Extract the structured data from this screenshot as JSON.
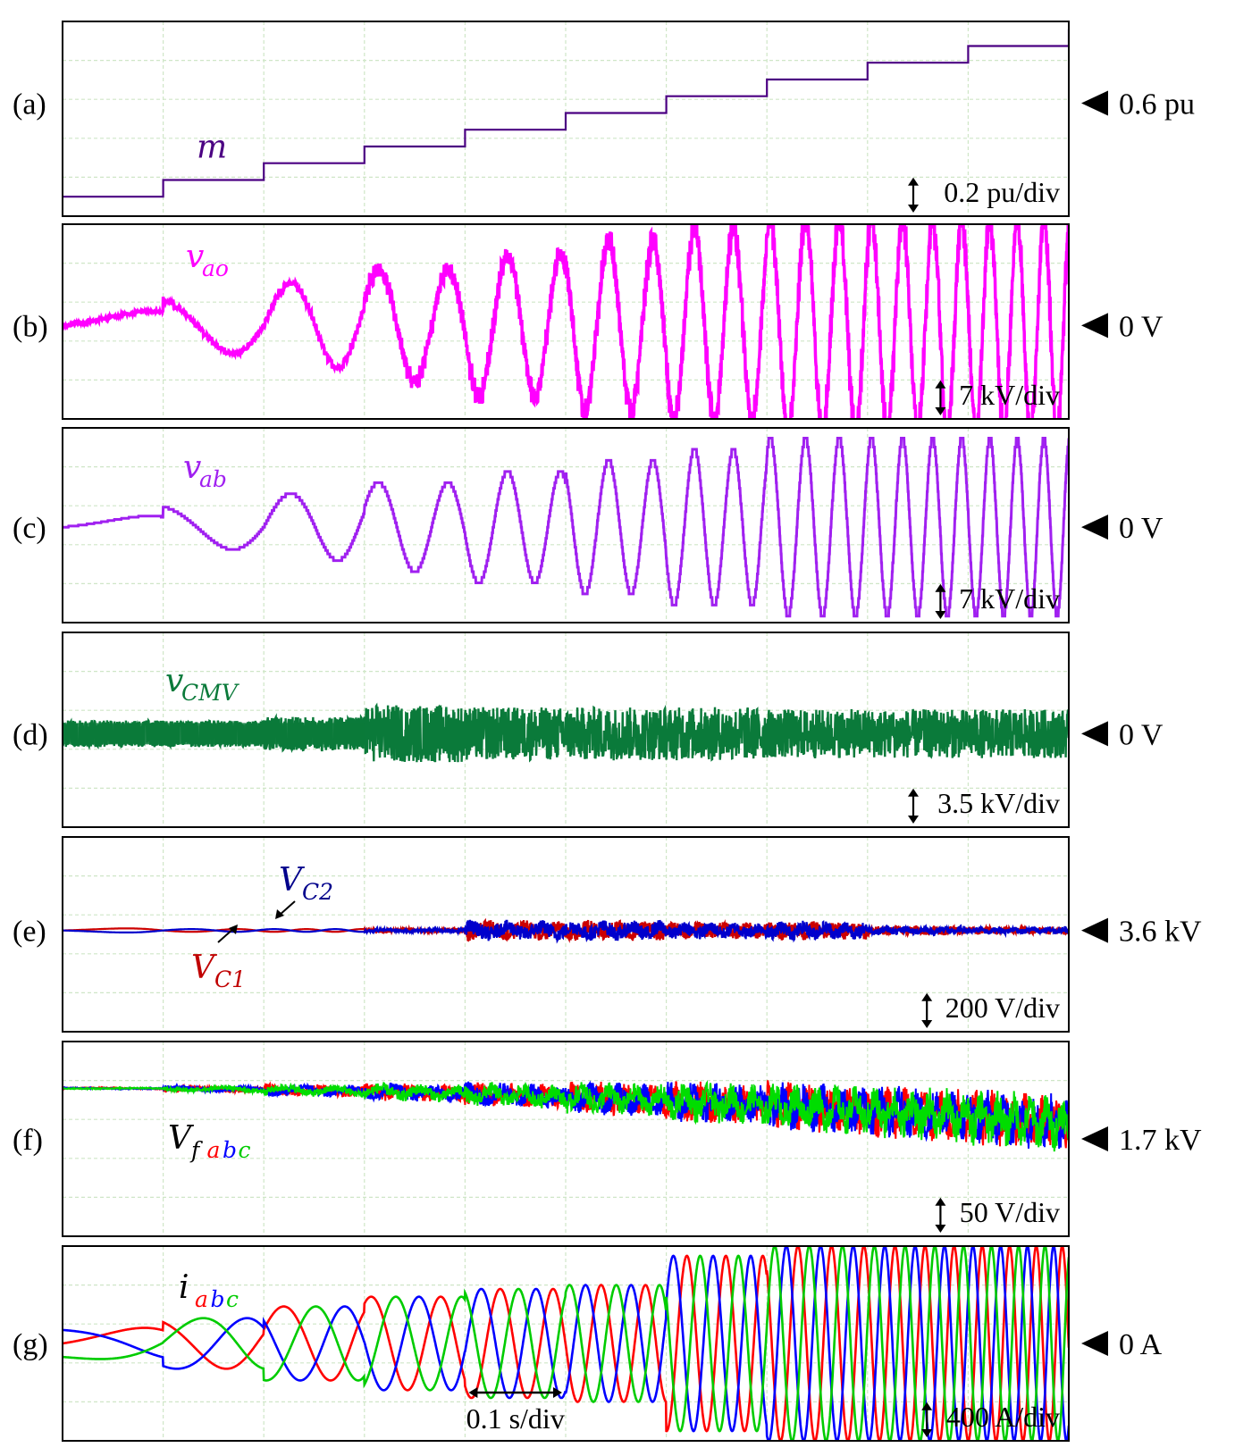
{
  "chart_data": [
    {
      "id": "a",
      "type": "line",
      "panel_label": "(a)",
      "reference": "0.6 pu",
      "scale": "0.2 pu/div",
      "signal": {
        "main": "m",
        "sub": []
      },
      "color": "#4b0082",
      "steps": [
        {
          "t": 0.0,
          "v": 0.0
        },
        {
          "t": 0.1,
          "v": 0.1
        },
        {
          "t": 0.2,
          "v": 0.2
        },
        {
          "t": 0.3,
          "v": 0.3
        },
        {
          "t": 0.4,
          "v": 0.4
        },
        {
          "t": 0.5,
          "v": 0.5
        },
        {
          "t": 0.6,
          "v": 0.6
        },
        {
          "t": 0.7,
          "v": 0.7
        },
        {
          "t": 0.8,
          "v": 0.8
        },
        {
          "t": 0.9,
          "v": 0.9
        },
        {
          "t": 1.0,
          "v": 1.0
        }
      ]
    },
    {
      "id": "b",
      "type": "line",
      "panel_label": "(b)",
      "reference": "0 V",
      "scale": "7 kV/div",
      "signal": {
        "main": "v",
        "sub": [
          {
            "text": "ao",
            "color": "#ff00ff"
          }
        ]
      },
      "color": "#ff00ff",
      "envelope_kV": [
        2.5,
        5,
        7.5,
        10,
        12.5,
        15,
        17.5,
        19,
        19,
        19
      ],
      "levels": 6
    },
    {
      "id": "c",
      "type": "line",
      "panel_label": "(c)",
      "reference": "0 V",
      "scale": "7 kV/div",
      "signal": {
        "main": "v",
        "sub": [
          {
            "text": "ab",
            "color": "#a020f0"
          }
        ]
      },
      "color": "#a020f0",
      "envelope_kV": [
        2,
        4,
        6,
        8,
        10,
        12,
        14,
        16,
        16,
        16
      ],
      "levels": 10
    },
    {
      "id": "d",
      "type": "line",
      "panel_label": "(d)",
      "reference": "0 V",
      "scale": "3.5 kV/div",
      "signal": {
        "main": "v",
        "sub": [
          {
            "text": "CMV",
            "color": "#0a7a3a"
          }
        ]
      },
      "color": "#0a7a3a",
      "envelope_kV": [
        1.2,
        1.2,
        1.5,
        2.6,
        2.4,
        2.4,
        2.4,
        2.2,
        2.2,
        2.2
      ]
    },
    {
      "id": "e",
      "type": "line",
      "panel_label": "(e)",
      "reference": "3.6 kV",
      "scale": "200 V/div",
      "signal": {
        "main": "V",
        "sub": [
          {
            "text": "C",
            "color": "#c00000"
          }
        ]
      },
      "series": [
        {
          "name": "VC1",
          "color": "#cc0000"
        },
        {
          "name": "VC2",
          "color": "#0000cc"
        }
      ],
      "annotations": {
        "vc2": {
          "main": "V",
          "sub": "C2",
          "color": "#00008b"
        },
        "vc1": {
          "main": "V",
          "sub": "C1",
          "color": "#c00000"
        }
      },
      "envelope_V": [
        30,
        20,
        20,
        30,
        130,
        130,
        110,
        120,
        60,
        50
      ]
    },
    {
      "id": "f",
      "type": "line",
      "panel_label": "(f)",
      "reference": "1.7 kV",
      "scale": "50 V/div",
      "signal": {
        "main": "V",
        "sub": [
          {
            "text": "f",
            "color": "#000000"
          },
          {
            "text": "a",
            "color": "#ff0000"
          },
          {
            "text": "b",
            "color": "#0000ff"
          },
          {
            "text": "c",
            "color": "#00cc00"
          }
        ]
      },
      "series": [
        {
          "name": "a",
          "color": "#ff0000"
        },
        {
          "name": "b",
          "color": "#0000ff"
        },
        {
          "name": "c",
          "color": "#00dd00"
        }
      ],
      "envelope_V": [
        2,
        8,
        15,
        22,
        30,
        40,
        50,
        60,
        65,
        70
      ]
    },
    {
      "id": "g",
      "type": "line",
      "panel_label": "(g)",
      "reference": "0 A",
      "scale": "400 A/div",
      "time_scale": "0.1 s/div",
      "signal": {
        "main": "i",
        "sub": [
          {
            "text": "a",
            "color": "#ff0000"
          },
          {
            "text": "b",
            "color": "#0000ff"
          },
          {
            "text": "c",
            "color": "#00cc00"
          }
        ]
      },
      "series": [
        {
          "name": "a",
          "color": "#ff0000"
        },
        {
          "name": "b",
          "color": "#0000ff"
        },
        {
          "name": "c",
          "color": "#00cc00"
        }
      ],
      "envelope_A": [
        160,
        260,
        380,
        480,
        560,
        600,
        900,
        1000,
        1000,
        1000
      ]
    }
  ]
}
